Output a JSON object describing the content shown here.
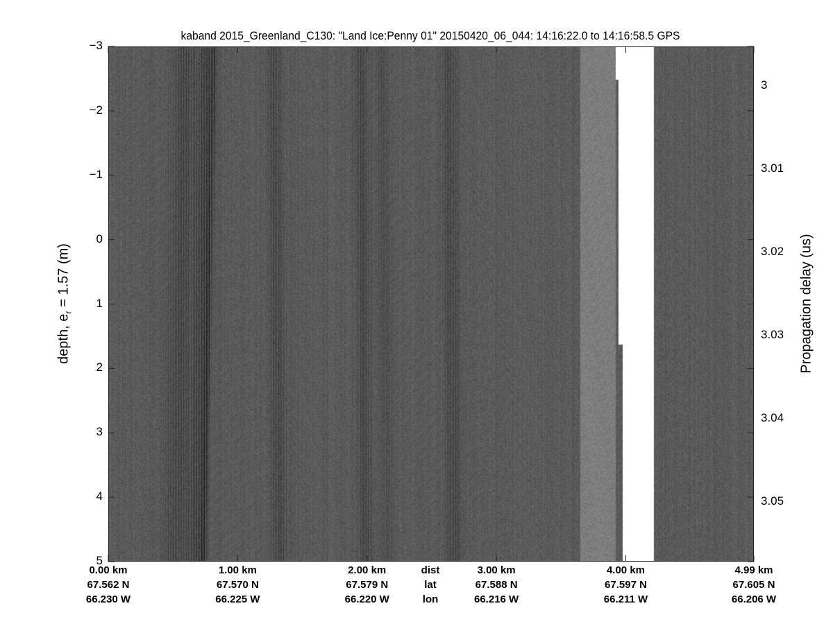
{
  "chart_data": {
    "type": "heatmap",
    "title": "kaband 2015_Greenland_C130: \"Land Ice:Penny 01\"  20150420_06_044: 14:16:22.0 to 14:16:58.5 GPS",
    "ylabel_main": "depth, e",
    "ylabel_sub": "r",
    "ylabel_rest": " = 1.57 (m)",
    "y2label": "Propagation delay (us)",
    "colormap": "gray",
    "ylim": [
      -3,
      5
    ],
    "yticks": [
      -3,
      -2,
      -1,
      0,
      1,
      2,
      3,
      4,
      5
    ],
    "ytick_labels": [
      "−3",
      "−2",
      "−1",
      "0",
      "1",
      "2",
      "3",
      "4",
      "5"
    ],
    "y2ticks": [
      3,
      3.01,
      3.02,
      3.03,
      3.04,
      3.05
    ],
    "y2tick_labels": [
      "3",
      "3.01",
      "3.02",
      "3.03",
      "3.04",
      "3.05"
    ],
    "x_axis_rows": [
      {
        "label": "dist",
        "values": [
          "0.00 km",
          "1.00 km",
          "2.00 km",
          "3.00 km",
          "4.00 km",
          "4.99 km"
        ]
      },
      {
        "label": "lat",
        "values": [
          "67.562 N",
          "67.570 N",
          "67.579 N",
          "67.588 N",
          "67.597 N",
          "67.605 N"
        ]
      },
      {
        "label": "lon",
        "values": [
          "66.230 W",
          "66.225 W",
          "66.220 W",
          "66.216 W",
          "66.211 W",
          "66.206 W"
        ]
      }
    ],
    "xticks_km": [
      0,
      1,
      2,
      3,
      4,
      4.99
    ],
    "xlim_km": [
      0,
      4.99
    ],
    "grid": false
  }
}
